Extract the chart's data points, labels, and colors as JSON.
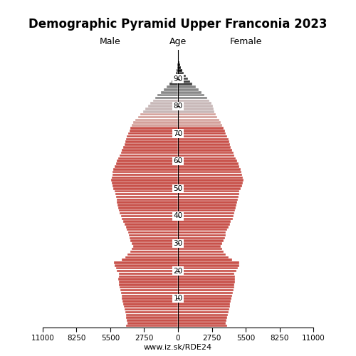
{
  "title": "Demographic Pyramid Upper Franconia 2023",
  "title_fontsize": 12,
  "label_male": "Male",
  "label_female": "Female",
  "label_age": "Age",
  "url": "www.iz.sk/RDE24",
  "xlim": 11000,
  "color_red": "#C8514A",
  "color_pink": "#D4A09A",
  "color_gray": "#C8B8B8",
  "color_lightgray": "#D8CCCC",
  "color_darkgray": "#888888",
  "color_black": "#111111",
  "age_ticks": [
    10,
    20,
    30,
    40,
    50,
    60,
    70,
    80,
    90
  ],
  "male": [
    4200,
    4100,
    4150,
    4200,
    4250,
    4300,
    4350,
    4400,
    4450,
    4500,
    4550,
    4600,
    4650,
    4700,
    4750,
    4800,
    4820,
    4850,
    4830,
    4800,
    4950,
    5050,
    5150,
    5200,
    4600,
    4300,
    4100,
    3900,
    3750,
    3650,
    3750,
    3850,
    3950,
    4000,
    4050,
    4150,
    4250,
    4350,
    4450,
    4600,
    4650,
    4750,
    4800,
    4850,
    4900,
    4950,
    5000,
    5050,
    5100,
    5150,
    5250,
    5350,
    5400,
    5450,
    5400,
    5350,
    5300,
    5250,
    5150,
    5050,
    4950,
    4850,
    4750,
    4650,
    4550,
    4450,
    4350,
    4300,
    4250,
    4150,
    4050,
    3950,
    3850,
    3750,
    3650,
    3450,
    3250,
    3050,
    2850,
    2650,
    2450,
    2250,
    2050,
    1850,
    1650,
    1400,
    1150,
    900,
    700,
    530,
    390,
    270,
    175,
    105,
    62,
    36,
    20,
    10,
    5,
    2,
    1
  ],
  "female": [
    4000,
    3900,
    3950,
    4000,
    4050,
    4100,
    4150,
    4200,
    4250,
    4300,
    4350,
    4400,
    4450,
    4500,
    4550,
    4600,
    4620,
    4650,
    4630,
    4600,
    4750,
    4850,
    4950,
    5000,
    4400,
    4100,
    3900,
    3700,
    3600,
    3500,
    3600,
    3700,
    3800,
    3850,
    3900,
    4000,
    4100,
    4200,
    4300,
    4450,
    4500,
    4600,
    4650,
    4700,
    4750,
    4800,
    4850,
    4900,
    4950,
    5000,
    5100,
    5200,
    5250,
    5300,
    5250,
    5200,
    5150,
    5100,
    5000,
    4900,
    4800,
    4700,
    4600,
    4500,
    4400,
    4300,
    4200,
    4150,
    4100,
    4000,
    3900,
    3800,
    3700,
    3600,
    3500,
    3350,
    3200,
    3050,
    2950,
    2900,
    2850,
    2700,
    2550,
    2350,
    2150,
    1900,
    1680,
    1430,
    1180,
    960,
    790,
    630,
    480,
    360,
    258,
    178,
    118,
    72,
    40,
    19,
    8
  ]
}
